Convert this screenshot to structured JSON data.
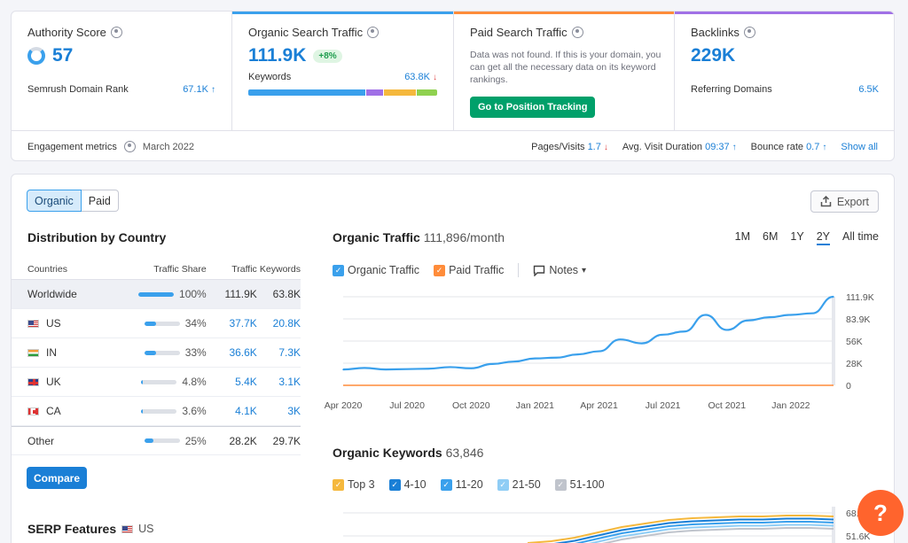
{
  "metrics": {
    "authority": {
      "title": "Authority Score",
      "value": "57",
      "row_label": "Semrush Domain Rank",
      "row_value": "67.1K"
    },
    "organic": {
      "title": "Organic Search Traffic",
      "value": "111.9K",
      "badge": "+8%",
      "row_label": "Keywords",
      "row_value": "63.8K",
      "accent": "#3aa0ec"
    },
    "paid": {
      "title": "Paid Search Traffic",
      "message": "Data was not found. If this is your domain, you can get all the necessary data on its keyword rankings.",
      "button": "Go to Position Tracking",
      "accent": "#ff8c3a"
    },
    "backlinks": {
      "title": "Backlinks",
      "value": "229K",
      "row_label": "Referring Domains",
      "row_value": "6.5K",
      "accent": "#a070e6"
    }
  },
  "engagement": {
    "label": "Engagement metrics",
    "date": "March 2022",
    "pages_label": "Pages/Visits",
    "pages_value": "1.7",
    "duration_label": "Avg. Visit Duration",
    "duration_value": "09:37",
    "bounce_label": "Bounce rate",
    "bounce_value": "0.7",
    "show_all": "Show all"
  },
  "tabs": {
    "organic": "Organic",
    "paid": "Paid"
  },
  "export_label": "Export",
  "distribution": {
    "title": "Distribution by Country",
    "headers": {
      "countries": "Countries",
      "share": "Traffic Share",
      "traffic": "Traffic",
      "keywords": "Keywords"
    },
    "rows": [
      {
        "country": "Worldwide",
        "share": "100%",
        "share_frac": 1.0,
        "traffic": "111.9K",
        "keywords": "63.8K"
      },
      {
        "country": "US",
        "share": "34%",
        "share_frac": 0.34,
        "traffic": "37.7K",
        "keywords": "20.8K"
      },
      {
        "country": "IN",
        "share": "33%",
        "share_frac": 0.33,
        "traffic": "36.6K",
        "keywords": "7.3K"
      },
      {
        "country": "UK",
        "share": "4.8%",
        "share_frac": 0.048,
        "traffic": "5.4K",
        "keywords": "3.1K"
      },
      {
        "country": "CA",
        "share": "3.6%",
        "share_frac": 0.036,
        "traffic": "4.1K",
        "keywords": "3K"
      },
      {
        "country": "Other",
        "share": "25%",
        "share_frac": 0.25,
        "traffic": "28.2K",
        "keywords": "29.7K"
      }
    ],
    "compare_label": "Compare"
  },
  "serp": {
    "title": "SERP Features",
    "country": "US"
  },
  "traffic_chart": {
    "title": "Organic Traffic",
    "subtitle": "111,896/month",
    "periods": [
      "1M",
      "6M",
      "1Y",
      "2Y",
      "All time"
    ],
    "selected_period": "2Y",
    "legend_organic": "Organic Traffic",
    "legend_paid": "Paid Traffic",
    "notes": "Notes"
  },
  "keywords_chart": {
    "title": "Organic Keywords",
    "subtitle": "63,846",
    "legend": [
      "Top 3",
      "4-10",
      "11-20",
      "21-50",
      "51-100"
    ],
    "legend_colors": [
      "#f5b83d",
      "#1a7fd6",
      "#3aa0ec",
      "#8fcdf5",
      "#c0c4cc"
    ],
    "y_ticks": [
      "68.9K",
      "51.6K"
    ]
  },
  "help_label": "?",
  "chart_data": {
    "type": "line",
    "title": "Organic Traffic",
    "x": [
      "Apr 2020",
      "Jul 2020",
      "Oct 2020",
      "Jan 2021",
      "Apr 2021",
      "Jul 2021",
      "Oct 2021",
      "Jan 2022"
    ],
    "x_ticks": [
      "Apr 2020",
      "Jul 2020",
      "Oct 2020",
      "Jan 2021",
      "Apr 2021",
      "Jul 2021",
      "Oct 2021",
      "Jan 2022"
    ],
    "y_ticks": [
      "111.9K",
      "83.9K",
      "56K",
      "28K",
      "0"
    ],
    "ylim": [
      0,
      111900
    ],
    "series": [
      {
        "name": "Organic Traffic",
        "color": "#3aa0ec",
        "x": [
          "Apr 2020",
          "May 2020",
          "Jun 2020",
          "Jul 2020",
          "Aug 2020",
          "Sep 2020",
          "Oct 2020",
          "Nov 2020",
          "Dec 2020",
          "Jan 2021",
          "Feb 2021",
          "Mar 2021",
          "Apr 2021",
          "May 2021",
          "Jun 2021",
          "Jul 2021",
          "Aug 2021",
          "Sep 2021",
          "Oct 2021",
          "Nov 2021",
          "Dec 2021",
          "Jan 2022",
          "Feb 2022",
          "Mar 2022"
        ],
        "values": [
          20000,
          22000,
          20000,
          20500,
          21000,
          23000,
          21500,
          27000,
          30000,
          34000,
          35000,
          39000,
          43000,
          58000,
          53000,
          64000,
          68000,
          89000,
          70000,
          82000,
          86000,
          89000,
          91000,
          111896
        ]
      },
      {
        "name": "Paid Traffic",
        "color": "#ff8c3a",
        "x": [
          "Apr 2020",
          "Mar 2022"
        ],
        "values": [
          0,
          0
        ]
      }
    ],
    "grid": true
  }
}
